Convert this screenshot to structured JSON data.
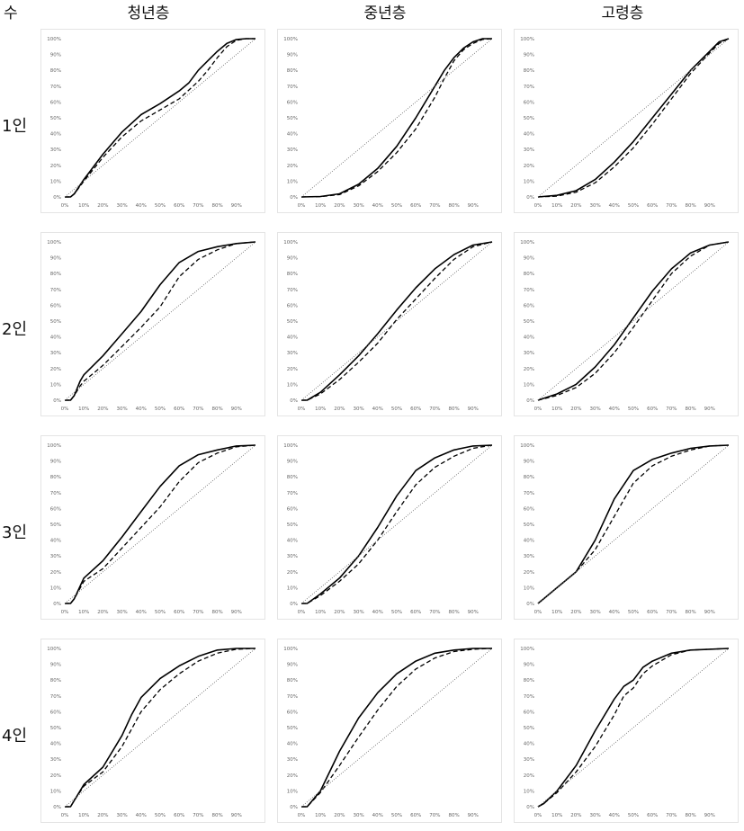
{
  "header": {
    "corner_label": "수",
    "columns": [
      "청년층",
      "중년층",
      "고령층"
    ],
    "rows": [
      "1인",
      "2인",
      "3인",
      "4인"
    ]
  },
  "axes": {
    "x_ticks": [
      "0%",
      "10%",
      "20%",
      "30%",
      "40%",
      "50%",
      "60%",
      "70%",
      "80%",
      "90%"
    ],
    "y_ticks": [
      "0%",
      "10%",
      "20%",
      "30%",
      "40%",
      "50%",
      "60%",
      "70%",
      "80%",
      "90%",
      "100%"
    ]
  },
  "colors": {
    "solid": "#000000",
    "dashed": "#000000",
    "diagonal": "#666666",
    "frame": "#e4e4e4"
  },
  "chart_data": [
    {
      "type": "line",
      "row": "1인",
      "column": "청년층",
      "xlim": [
        0,
        100
      ],
      "ylim": [
        0,
        100
      ],
      "series": [
        {
          "style": "solid",
          "x": [
            0,
            3,
            5,
            10,
            20,
            30,
            40,
            50,
            60,
            65,
            70,
            75,
            80,
            85,
            90,
            95,
            100
          ],
          "y": [
            0,
            0,
            2,
            11,
            27,
            41,
            52,
            59,
            67,
            72,
            80,
            86,
            92,
            97,
            99.5,
            100,
            100
          ]
        },
        {
          "style": "dashed",
          "x": [
            0,
            3,
            5,
            10,
            20,
            30,
            40,
            50,
            60,
            70,
            75,
            80,
            85,
            90,
            95,
            100
          ],
          "y": [
            0,
            0,
            2,
            10,
            25,
            38,
            48,
            55,
            62,
            73,
            80,
            88,
            95,
            99,
            100,
            100
          ]
        },
        {
          "style": "dotted",
          "x": [
            0,
            100
          ],
          "y": [
            0,
            100
          ]
        }
      ]
    },
    {
      "type": "line",
      "row": "1인",
      "column": "중년층",
      "xlim": [
        0,
        100
      ],
      "ylim": [
        0,
        100
      ],
      "series": [
        {
          "style": "solid",
          "x": [
            0,
            10,
            20,
            30,
            40,
            50,
            60,
            70,
            75,
            80,
            85,
            90,
            95,
            100
          ],
          "y": [
            0,
            0.3,
            2,
            8,
            18,
            32,
            50,
            70,
            80,
            88,
            94,
            98,
            100,
            100
          ]
        },
        {
          "style": "dashed",
          "x": [
            0,
            10,
            20,
            30,
            40,
            50,
            60,
            70,
            75,
            80,
            85,
            90,
            95,
            100
          ],
          "y": [
            0,
            0.2,
            1.5,
            7,
            16,
            28,
            43,
            63,
            75,
            86,
            93,
            97,
            99.5,
            100
          ]
        },
        {
          "style": "dotted",
          "x": [
            0,
            100
          ],
          "y": [
            0,
            100
          ]
        }
      ]
    },
    {
      "type": "line",
      "row": "1인",
      "column": "고령층",
      "xlim": [
        0,
        100
      ],
      "ylim": [
        0,
        100
      ],
      "series": [
        {
          "style": "solid",
          "x": [
            0,
            10,
            20,
            30,
            40,
            50,
            60,
            70,
            80,
            90,
            95,
            100
          ],
          "y": [
            0,
            1,
            4,
            11,
            22,
            35,
            50,
            65,
            80,
            92,
            98,
            100
          ]
        },
        {
          "style": "dashed",
          "x": [
            0,
            10,
            20,
            30,
            40,
            50,
            60,
            70,
            80,
            90,
            95,
            100
          ],
          "y": [
            0,
            0.5,
            3,
            9,
            19,
            31,
            46,
            62,
            78,
            91,
            97,
            100
          ]
        },
        {
          "style": "dotted",
          "x": [
            0,
            100
          ],
          "y": [
            0,
            100
          ]
        }
      ]
    },
    {
      "type": "line",
      "row": "2인",
      "column": "청년층",
      "xlim": [
        0,
        100
      ],
      "ylim": [
        0,
        100
      ],
      "series": [
        {
          "style": "solid",
          "x": [
            0,
            3,
            5,
            8,
            10,
            20,
            30,
            40,
            50,
            60,
            70,
            80,
            90,
            100
          ],
          "y": [
            0,
            0,
            3,
            12,
            16,
            28,
            42,
            56,
            73,
            87,
            94,
            97,
            99,
            100
          ]
        },
        {
          "style": "dashed",
          "x": [
            0,
            3,
            5,
            8,
            10,
            20,
            30,
            40,
            50,
            60,
            70,
            80,
            90,
            100
          ],
          "y": [
            0,
            0,
            3,
            9,
            12,
            22,
            34,
            46,
            59,
            78,
            89,
            95,
            99,
            100
          ]
        },
        {
          "style": "dotted",
          "x": [
            0,
            100
          ],
          "y": [
            0,
            100
          ]
        }
      ]
    },
    {
      "type": "line",
      "row": "2인",
      "column": "중년층",
      "xlim": [
        0,
        100
      ],
      "ylim": [
        0,
        100
      ],
      "series": [
        {
          "style": "solid",
          "x": [
            0,
            3,
            10,
            20,
            30,
            40,
            50,
            60,
            70,
            80,
            90,
            100
          ],
          "y": [
            0,
            0,
            5,
            16,
            28,
            42,
            57,
            71,
            83,
            92,
            98,
            100
          ]
        },
        {
          "style": "dashed",
          "x": [
            0,
            3,
            10,
            20,
            30,
            40,
            50,
            60,
            70,
            80,
            90,
            100
          ],
          "y": [
            0,
            0,
            4,
            13,
            24,
            36,
            51,
            64,
            77,
            89,
            97,
            100
          ]
        },
        {
          "style": "dotted",
          "x": [
            0,
            100
          ],
          "y": [
            0,
            100
          ]
        }
      ]
    },
    {
      "type": "line",
      "row": "2인",
      "column": "고령층",
      "xlim": [
        0,
        100
      ],
      "ylim": [
        0,
        100
      ],
      "series": [
        {
          "style": "solid",
          "x": [
            0,
            10,
            20,
            30,
            40,
            50,
            60,
            70,
            80,
            90,
            100
          ],
          "y": [
            0,
            4,
            10,
            21,
            35,
            52,
            69,
            83,
            93,
            98,
            100
          ]
        },
        {
          "style": "dashed",
          "x": [
            0,
            10,
            20,
            30,
            40,
            50,
            60,
            70,
            80,
            90,
            100
          ],
          "y": [
            0,
            3,
            8,
            17,
            30,
            46,
            63,
            80,
            91,
            98,
            100
          ]
        },
        {
          "style": "dotted",
          "x": [
            0,
            100
          ],
          "y": [
            0,
            100
          ]
        }
      ]
    },
    {
      "type": "line",
      "row": "3인",
      "column": "청년층",
      "xlim": [
        0,
        100
      ],
      "ylim": [
        0,
        100
      ],
      "series": [
        {
          "style": "solid",
          "x": [
            0,
            3,
            5,
            10,
            20,
            30,
            40,
            50,
            60,
            70,
            80,
            90,
            100
          ],
          "y": [
            0,
            0,
            3,
            16,
            27,
            42,
            58,
            74,
            87,
            94,
            97,
            99.5,
            100
          ]
        },
        {
          "style": "dashed",
          "x": [
            0,
            3,
            5,
            10,
            20,
            30,
            40,
            50,
            60,
            70,
            80,
            90,
            100
          ],
          "y": [
            0,
            0,
            3,
            14,
            22,
            35,
            48,
            61,
            77,
            89,
            95,
            99,
            100
          ]
        },
        {
          "style": "dotted",
          "x": [
            0,
            100
          ],
          "y": [
            0,
            100
          ]
        }
      ]
    },
    {
      "type": "line",
      "row": "3인",
      "column": "중년층",
      "xlim": [
        0,
        100
      ],
      "ylim": [
        0,
        100
      ],
      "series": [
        {
          "style": "solid",
          "x": [
            0,
            3,
            10,
            20,
            30,
            40,
            50,
            60,
            70,
            80,
            90,
            100
          ],
          "y": [
            0,
            0,
            6,
            16,
            30,
            48,
            68,
            84,
            92,
            97,
            99.5,
            100
          ]
        },
        {
          "style": "dashed",
          "x": [
            0,
            3,
            10,
            20,
            30,
            40,
            50,
            60,
            70,
            80,
            90,
            100
          ],
          "y": [
            0,
            0,
            5,
            14,
            25,
            40,
            58,
            75,
            86,
            93,
            98,
            100
          ]
        },
        {
          "style": "dotted",
          "x": [
            0,
            100
          ],
          "y": [
            0,
            100
          ]
        }
      ]
    },
    {
      "type": "line",
      "row": "3인",
      "column": "고령층",
      "xlim": [
        0,
        100
      ],
      "ylim": [
        0,
        100
      ],
      "series": [
        {
          "style": "solid",
          "x": [
            0,
            3,
            10,
            20,
            30,
            40,
            50,
            60,
            70,
            80,
            90,
            100
          ],
          "y": [
            0,
            3,
            10,
            20,
            40,
            66,
            84,
            91,
            95,
            98,
            99.5,
            100
          ]
        },
        {
          "style": "dashed",
          "x": [
            0,
            3,
            10,
            20,
            30,
            40,
            50,
            60,
            70,
            80,
            90,
            100
          ],
          "y": [
            0,
            3,
            10,
            20,
            34,
            55,
            76,
            87,
            93,
            97,
            99.5,
            100
          ]
        },
        {
          "style": "dotted",
          "x": [
            0,
            100
          ],
          "y": [
            0,
            100
          ]
        }
      ]
    },
    {
      "type": "line",
      "row": "4인",
      "column": "청년층",
      "xlim": [
        0,
        100
      ],
      "ylim": [
        0,
        100
      ],
      "series": [
        {
          "style": "solid",
          "x": [
            0,
            3,
            5,
            10,
            20,
            30,
            35,
            40,
            50,
            60,
            70,
            80,
            90,
            100
          ],
          "y": [
            0,
            0,
            4,
            14,
            25,
            45,
            58,
            69,
            81,
            89,
            95,
            99,
            100,
            100
          ]
        },
        {
          "style": "dashed",
          "x": [
            0,
            3,
            5,
            10,
            20,
            30,
            35,
            40,
            50,
            60,
            70,
            80,
            90,
            100
          ],
          "y": [
            0,
            0,
            4,
            13,
            22,
            38,
            49,
            60,
            74,
            84,
            92,
            97,
            99.5,
            100
          ]
        },
        {
          "style": "dotted",
          "x": [
            0,
            100
          ],
          "y": [
            0,
            100
          ]
        }
      ]
    },
    {
      "type": "line",
      "row": "4인",
      "column": "중년층",
      "xlim": [
        0,
        100
      ],
      "ylim": [
        0,
        100
      ],
      "series": [
        {
          "style": "solid",
          "x": [
            0,
            3,
            10,
            20,
            30,
            40,
            50,
            60,
            70,
            80,
            90,
            100
          ],
          "y": [
            0,
            0,
            10,
            35,
            56,
            72,
            84,
            92,
            97,
            99,
            100,
            100
          ]
        },
        {
          "style": "dashed",
          "x": [
            0,
            3,
            10,
            20,
            30,
            40,
            50,
            60,
            70,
            80,
            90,
            100
          ],
          "y": [
            0,
            0,
            9,
            26,
            44,
            61,
            76,
            87,
            94,
            98,
            99.5,
            100
          ]
        },
        {
          "style": "dotted",
          "x": [
            0,
            100
          ],
          "y": [
            0,
            100
          ]
        }
      ]
    },
    {
      "type": "line",
      "row": "4인",
      "column": "고령층",
      "xlim": [
        0,
        100
      ],
      "ylim": [
        0,
        100
      ],
      "series": [
        {
          "style": "solid",
          "x": [
            0,
            3,
            10,
            20,
            30,
            40,
            45,
            50,
            55,
            60,
            70,
            80,
            90,
            100
          ],
          "y": [
            0,
            2,
            10,
            26,
            48,
            68,
            76,
            80,
            88,
            92,
            97,
            99,
            99.5,
            100
          ]
        },
        {
          "style": "dashed",
          "x": [
            0,
            3,
            10,
            20,
            30,
            40,
            45,
            50,
            55,
            60,
            70,
            80,
            90,
            100
          ],
          "y": [
            0,
            2,
            9,
            22,
            38,
            58,
            70,
            75,
            84,
            89,
            96,
            99,
            99.5,
            100
          ]
        },
        {
          "style": "dotted",
          "x": [
            0,
            100
          ],
          "y": [
            0,
            100
          ]
        }
      ]
    }
  ]
}
